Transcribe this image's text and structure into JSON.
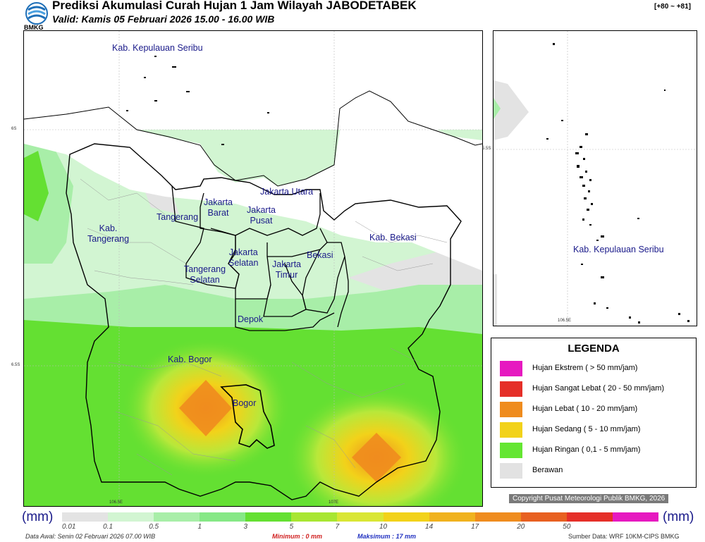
{
  "header": {
    "title": "Prediksi Akumulasi Curah Hujan 1 Jam Wilayah JABODETABEK",
    "valid": "Valid: Kamis 05 Februari 2026 15.00 - 16.00 WIB",
    "forecast_range": "[+80 ~ +81]",
    "logo_text": "BMKG"
  },
  "map_labels": {
    "kepulauan_seribu": "Kab. Kepulauan Seribu",
    "jakarta_utara": "Jakarta Utara",
    "jakarta_barat": "Jakarta\nBarat",
    "jakarta_pusat": "Jakarta\nPusat",
    "tangerang": "Tangerang",
    "kab_tangerang": "Kab.\nTangerang",
    "jakarta_selatan": "Jakarta\nSelatan",
    "jakarta_timur": "Jakarta\nTimur",
    "bekasi": "Bekasi",
    "kab_bekasi": "Kab. Bekasi",
    "tangerang_selatan": "Tangerang\nSelatan",
    "depok": "Depok",
    "kab_bogor": "Kab. Bogor",
    "bogor": "Bogor"
  },
  "inset": {
    "label": "Kab. Kepulauan Seribu",
    "lat_label": "5.5S",
    "lon_label": "106.5E"
  },
  "coords": {
    "lat_1": "6S",
    "lat_2": "6.5S",
    "lon_1": "106.5E",
    "lon_2": "107E"
  },
  "legend": {
    "title": "LEGENDA",
    "items": [
      {
        "label": "Hujan Ekstrem ( > 50 mm/jam)",
        "color": "#e619c0"
      },
      {
        "label": "Hujan Sangat Lebat ( 20 - 50 mm/jam)",
        "color": "#e52f28"
      },
      {
        "label": "Hujan Lebat ( 10 - 20 mm/jam)",
        "color": "#ef8c1e"
      },
      {
        "label": "Hujan Sedang ( 5 - 10 mm/jam)",
        "color": "#f2d21a"
      },
      {
        "label": "Hujan Ringan ( 0,1 - 5 mm/jam)",
        "color": "#64e632"
      },
      {
        "label": "Berawan",
        "color": "#e2e2e2"
      }
    ]
  },
  "colorbar": {
    "unit_left": "(mm)",
    "unit_right": "(mm)",
    "ticks": [
      "0.01",
      "0.1",
      "0.5",
      "1",
      "3",
      "5",
      "7",
      "10",
      "14",
      "17",
      "20",
      "50"
    ],
    "colors": [
      "#e3e3e3",
      "#d2f5d2",
      "#a8eea8",
      "#86e886",
      "#64e032",
      "#a8e632",
      "#d9e635",
      "#f2d21a",
      "#f0b21e",
      "#ef8c1e",
      "#e86020",
      "#e52f28",
      "#e619c0"
    ]
  },
  "copyright": "Copyright Pusat Meteorologi Publik BMKG, 2026",
  "footer": {
    "data_awal": "Data Awal: Senin 02 Februari 2026 07.00 WIB",
    "minimum": "Minimum :       0 mm",
    "maksimum": "Maksimum :      17 mm",
    "sumber": "Sumber Data: WRF 10KM-CIPS BMKG"
  }
}
